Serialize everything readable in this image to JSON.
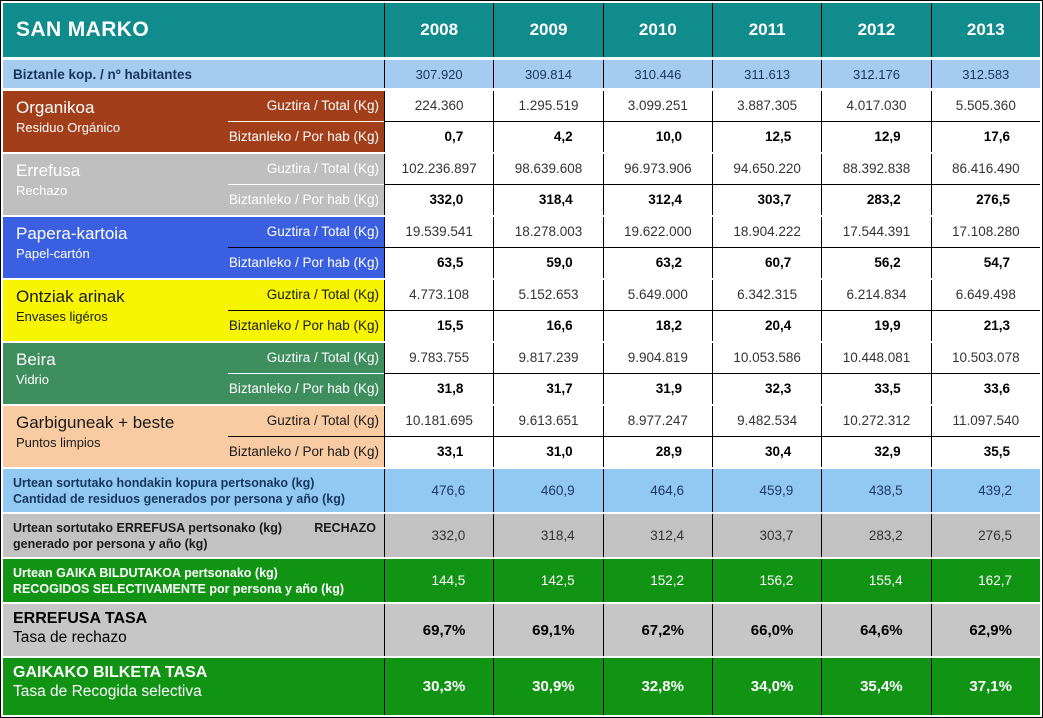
{
  "chart_data": {
    "type": "table",
    "title": "SAN MARKO",
    "years": [
      "2008",
      "2009",
      "2010",
      "2011",
      "2012",
      "2013"
    ],
    "population": {
      "label": "Biztanle kop. / nº habitantes",
      "values": [
        "307.920",
        "309.814",
        "310.446",
        "311.613",
        "312.176",
        "312.583"
      ]
    },
    "row_labels": {
      "total": "Guztira / Total (Kg)",
      "per_capita": "Biztanleko / Por hab (Kg)"
    },
    "sections": [
      {
        "name": "Organikoa",
        "subtitle": "Residuo Orgánico",
        "color": "#A33E1A",
        "total": [
          "224.360",
          "1.295.519",
          "3.099.251",
          "3.887.305",
          "4.017.030",
          "5.505.360"
        ],
        "per_capita": [
          "0,7",
          "4,2",
          "10,0",
          "12,5",
          "12,9",
          "17,6"
        ]
      },
      {
        "name": "Errefusa",
        "subtitle": "Rechazo",
        "color": "#BFBFBF",
        "total": [
          "102.236.897",
          "98.639.608",
          "96.973.906",
          "94.650.220",
          "88.392.838",
          "86.416.490"
        ],
        "per_capita": [
          "332,0",
          "318,4",
          "312,4",
          "303,7",
          "283,2",
          "276,5"
        ]
      },
      {
        "name": "Papera-kartoia",
        "subtitle": "Papel-cartón",
        "color": "#3A5FE0",
        "total": [
          "19.539.541",
          "18.278.003",
          "19.622.000",
          "18.904.222",
          "17.544.391",
          "17.108.280"
        ],
        "per_capita": [
          "63,5",
          "59,0",
          "63,2",
          "60,7",
          "56,2",
          "54,7"
        ]
      },
      {
        "name": "Ontziak arinak",
        "subtitle": "Envases ligéros",
        "color": "#F7F500",
        "total": [
          "4.773.108",
          "5.152.653",
          "5.649.000",
          "6.342.315",
          "6.214.834",
          "6.649.498"
        ],
        "per_capita": [
          "15,5",
          "16,6",
          "18,2",
          "20,4",
          "19,9",
          "21,3"
        ]
      },
      {
        "name": "Beira",
        "subtitle": "Vidrio",
        "color": "#3E8E5E",
        "total": [
          "9.783.755",
          "9.817.239",
          "9.904.819",
          "10.053.586",
          "10.448.081",
          "10.503.078"
        ],
        "per_capita": [
          "31,8",
          "31,7",
          "31,9",
          "32,3",
          "33,5",
          "33,6"
        ]
      },
      {
        "name": "Garbiguneak + beste",
        "subtitle": "Puntos limpios",
        "color": "#F8CBA2",
        "total": [
          "10.181.695",
          "9.613.651",
          "8.977.247",
          "9.482.534",
          "10.272.312",
          "11.097.540"
        ],
        "per_capita": [
          "33,1",
          "31,0",
          "28,9",
          "30,4",
          "32,9",
          "35,5"
        ]
      }
    ],
    "summary_rows": [
      {
        "label_line1": "Urtean sortutako hondakin kopura pertsonako (kg)",
        "label_right": "",
        "label_line2": "Cantidad de residuos generados por persona y año (kg)",
        "values": [
          "476,6",
          "460,9",
          "464,6",
          "459,9",
          "438,5",
          "439,2"
        ]
      },
      {
        "label_line1": "Urtean sortutako ERREFUSA pertsonako (kg)",
        "label_right": "RECHAZO",
        "label_line2": "generado por persona y año (kg)",
        "values": [
          "332,0",
          "318,4",
          "312,4",
          "303,7",
          "283,2",
          "276,5"
        ]
      },
      {
        "label_line1": "Urtean GAIKA BILDUTAKOA pertsonako (kg)",
        "label_right": "",
        "label_line2": "RECOGIDOS SELECTIVAMENTE por persona y año (kg)",
        "values": [
          "144,5",
          "142,5",
          "152,2",
          "156,2",
          "155,4",
          "162,7"
        ]
      }
    ],
    "rate_rows": [
      {
        "label_line1": "ERREFUSA TASA",
        "label_line2": "Tasa de rechazo",
        "values": [
          "69,7%",
          "69,1%",
          "67,2%",
          "66,0%",
          "64,6%",
          "62,9%"
        ]
      },
      {
        "label_line1": "GAIKAKO BILKETA TASA",
        "label_line2": "Tasa de Recogida selectiva",
        "values": [
          "30,3%",
          "30,9%",
          "32,8%",
          "34,0%",
          "35,4%",
          "37,1%"
        ]
      }
    ],
    "colors": {
      "header_teal": "#108C8C",
      "population_blue": "#A6CBF0",
      "summary_blue": "#92C9F2",
      "summary_gray": "#C2C2C2",
      "summary_green": "#119414",
      "grid_black": "#000000",
      "navy_text": "#17365D"
    }
  }
}
